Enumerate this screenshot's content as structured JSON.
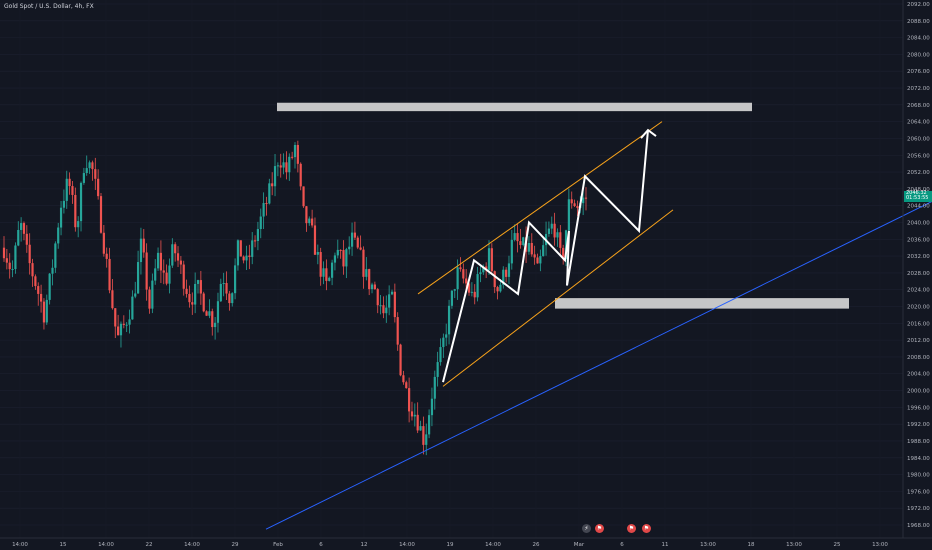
{
  "symbol": {
    "title": "Gold Spot / U.S. Dollar, 4h, FX"
  },
  "last_price": {
    "value": "2046.32",
    "countdown": "01:53:55",
    "color": "#089981"
  },
  "colors": {
    "background": "#131722",
    "up": "#26a69a",
    "down": "#ef5350",
    "channel": "#f7a21b",
    "trendline": "#2962ff",
    "zone": "#d9d9d9",
    "path": "#ffffff"
  },
  "events": [
    {
      "icon": "dividend-icon",
      "glyph": "⚡"
    },
    {
      "icon": "earnings-flag-icon",
      "glyph": "⚑"
    },
    {
      "icon": "earnings-flag-icon",
      "glyph": "⚑"
    },
    {
      "icon": "earnings-flag-icon",
      "glyph": "⚑"
    }
  ],
  "chart_data": {
    "type": "candlestick",
    "title": "Gold Spot / U.S. Dollar, 4h, FX",
    "ylim": [
      1966,
      2093
    ],
    "y_ticks": [
      "2092.00",
      "2088.00",
      "2084.00",
      "2080.00",
      "2076.00",
      "2072.00",
      "2068.00",
      "2064.00",
      "2060.00",
      "2056.00",
      "2052.00",
      "2048.00",
      "2044.00",
      "2040.00",
      "2036.00",
      "2032.00",
      "2028.00",
      "2024.00",
      "2020.00",
      "2016.00",
      "2012.00",
      "2008.00",
      "2004.00",
      "2000.00",
      "1996.00",
      "1992.00",
      "1988.00",
      "1984.00",
      "1980.00",
      "1976.00",
      "1972.00",
      "1968.00"
    ],
    "x_ticks": [
      "14:00",
      "15",
      "14:00",
      "22",
      "14:00",
      "29",
      "Feb",
      "6",
      "12",
      "14:00",
      "19",
      "14:00",
      "26",
      "Mar",
      "6",
      "11",
      "13:00",
      "18",
      "13:00",
      "25",
      "13:00"
    ],
    "close_path": [
      2034,
      2028,
      2040,
      2031,
      2025,
      2018,
      2030,
      2044,
      2050,
      2038,
      2056,
      2052,
      2040,
      2026,
      2012,
      2016,
      2022,
      2035,
      2020,
      2032,
      2026,
      2034,
      2028,
      2022,
      2024,
      2020,
      2016,
      2028,
      2022,
      2034,
      2030,
      2036,
      2042,
      2048,
      2056,
      2052,
      2058,
      2042,
      2038,
      2030,
      2024,
      2034,
      2030,
      2036,
      2032,
      2026,
      2024,
      2018,
      2022,
      2006,
      1998,
      1994,
      1988,
      2000,
      2008,
      2018,
      2028,
      2026,
      2022,
      2028,
      2032,
      2024,
      2028,
      2036,
      2034,
      2034,
      2028,
      2036,
      2040,
      2030,
      2046,
      2044,
      2046
    ],
    "annotations": {
      "resistance_zone": [
        2066.5,
        2068.5
      ],
      "support_zone": [
        2019.5,
        2022
      ],
      "channel_upper": [
        [
          2023,
          2064
        ],
        [
          2064,
          2043
        ]
      ],
      "channel_lower": [
        [
          2001,
          2043
        ],
        [
          2014,
          2022
        ]
      ],
      "trendline": [
        [
          1967,
          2045
        ]
      ],
      "projection_path": [
        2002,
        2031,
        2023,
        2040,
        2031,
        2038,
        2025,
        2051,
        2038,
        2062
      ]
    },
    "last_price": 2046.32
  }
}
